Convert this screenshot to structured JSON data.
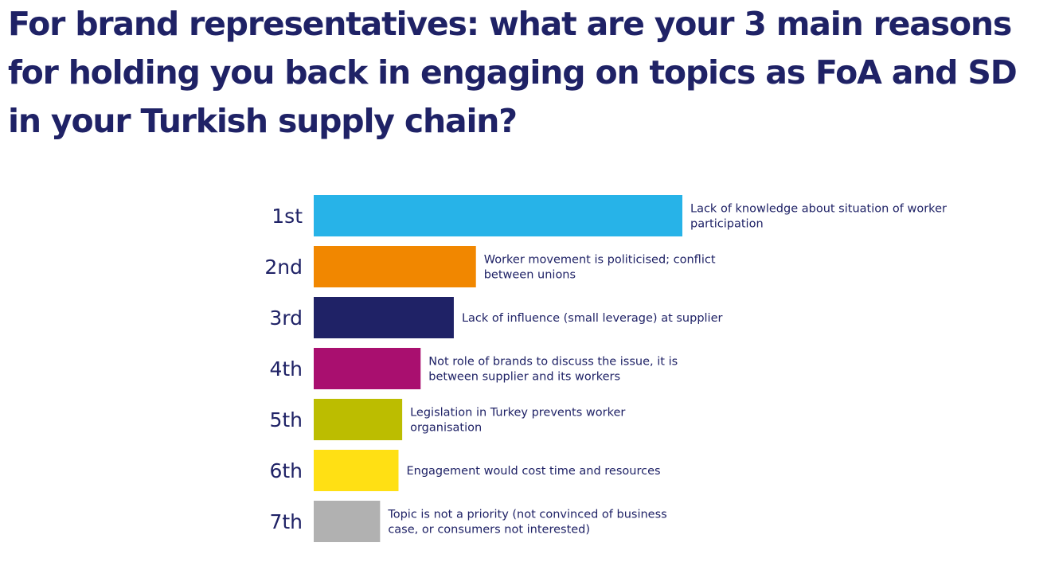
{
  "title": "For brand representatives: what are your 3 main reasons for holding you back in engaging on topics as FoA and SD in your Turkish supply chain?",
  "chart_data": {
    "type": "bar",
    "orientation": "horizontal",
    "categories": [
      "1st",
      "2nd",
      "3rd",
      "4th",
      "5th",
      "6th",
      "7th"
    ],
    "values": [
      100,
      44,
      38,
      29,
      24,
      23,
      18
    ],
    "labels": [
      [
        "Lack of knowledge about situation of worker",
        "participation"
      ],
      [
        "Worker movement is politicised; conflict",
        "between unions"
      ],
      [
        "Lack of influence (small leverage) at supplier"
      ],
      [
        "Not role of brands to discuss the issue, it is",
        "between supplier and its workers"
      ],
      [
        "Legislation in Turkey prevents worker",
        "organisation"
      ],
      [
        "Engagement would cost time and resources"
      ],
      [
        "Topic is not a priority (not convinced of business",
        "case, or consumers not interested)"
      ]
    ],
    "colors": [
      "#27b3e8",
      "#f18700",
      "#1f2266",
      "#a90f6f",
      "#bcbd00",
      "#ffe014",
      "#b1b1b1"
    ],
    "xlim": [
      0,
      100
    ],
    "grid": false,
    "legend": "none"
  }
}
